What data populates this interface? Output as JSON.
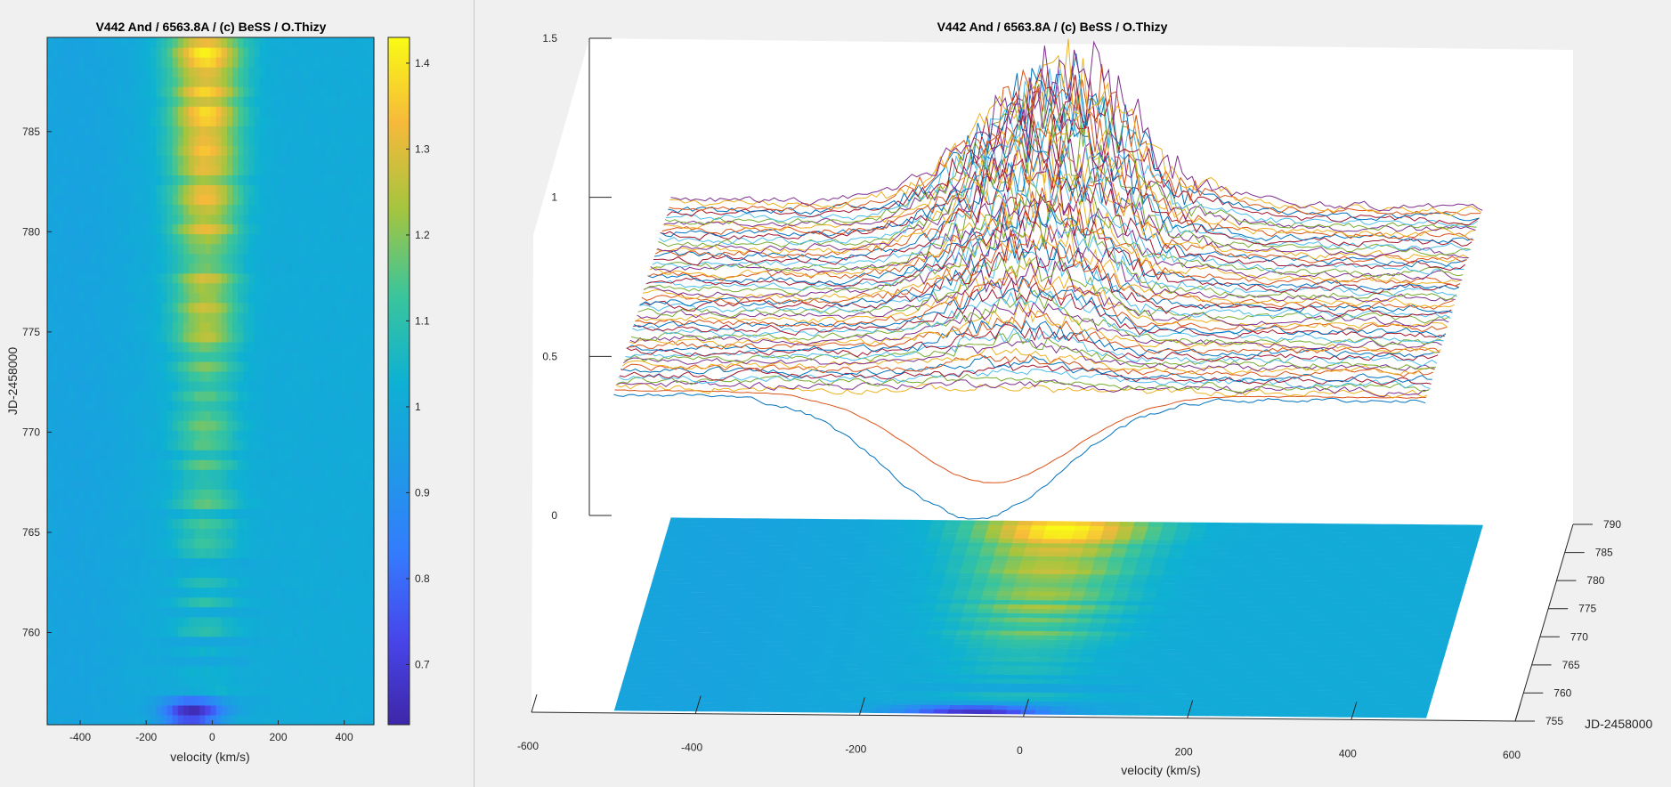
{
  "chart_data": [
    {
      "type": "heatmap",
      "title": "V442 And / 6563.8A / (c) BeSS / O.Thizy",
      "xlabel": "velocity (km/s)",
      "ylabel": "JD-2458000",
      "x_ticks": [
        "-400",
        "-200",
        "0",
        "200",
        "400"
      ],
      "x_tick_values": [
        -400,
        -200,
        0,
        200,
        400
      ],
      "y_ticks": [
        "760",
        "765",
        "770",
        "775",
        "780",
        "785"
      ],
      "y_tick_values": [
        760,
        765,
        770,
        775,
        780,
        785
      ],
      "xlim": [
        -500,
        490
      ],
      "ylim": [
        755.4,
        789.7
      ],
      "colorbar": {
        "ticks": [
          "0.7",
          "0.8",
          "0.9",
          "1",
          "1.1",
          "1.2",
          "1.3",
          "1.4"
        ],
        "tick_values": [
          0.7,
          0.8,
          0.9,
          1.0,
          1.1,
          1.2,
          1.3,
          1.4
        ],
        "clim": [
          0.63,
          1.43
        ]
      },
      "emission_peak": {
        "velocity_center": -20,
        "half_width": 100,
        "max_value": 1.38,
        "from_jd": 773,
        "to_jd": 790
      },
      "absorption_dip": {
        "velocity_center": -60,
        "jd": 756,
        "min_value": 0.65
      }
    },
    {
      "type": "line",
      "title": "V442 And / 6563.8A / (c) BeSS / O.Thizy",
      "xlabel": "velocity (km/s)",
      "ylabel": "JD-2458000",
      "x_ticks": [
        "-600",
        "-400",
        "-200",
        "0",
        "200",
        "400",
        "600"
      ],
      "x_tick_values": [
        -600,
        -400,
        -200,
        0,
        200,
        400,
        600
      ],
      "y_ticks": [
        "755",
        "760",
        "765",
        "770",
        "775",
        "780",
        "785",
        "790"
      ],
      "y_tick_values": [
        755,
        760,
        765,
        770,
        775,
        780,
        785,
        790
      ],
      "z_ticks": [
        "0",
        "0.5",
        "1",
        "1.5"
      ],
      "z_tick_values": [
        0,
        0.5,
        1,
        1.5
      ],
      "xlim": [
        -600,
        600
      ],
      "ylim": [
        755,
        790
      ],
      "zlim": [
        0,
        1.5
      ],
      "series_colors": [
        "#0072BD",
        "#D95319",
        "#EDB120",
        "#7E2F8E",
        "#77AC30",
        "#4DBEEE",
        "#A2142F"
      ],
      "profiles": {
        "count": 60,
        "velocity_range": [
          -500,
          490
        ],
        "continuum": 1.0,
        "first_profile_min": 0.62,
        "last_profile_peak": 1.42
      }
    }
  ]
}
